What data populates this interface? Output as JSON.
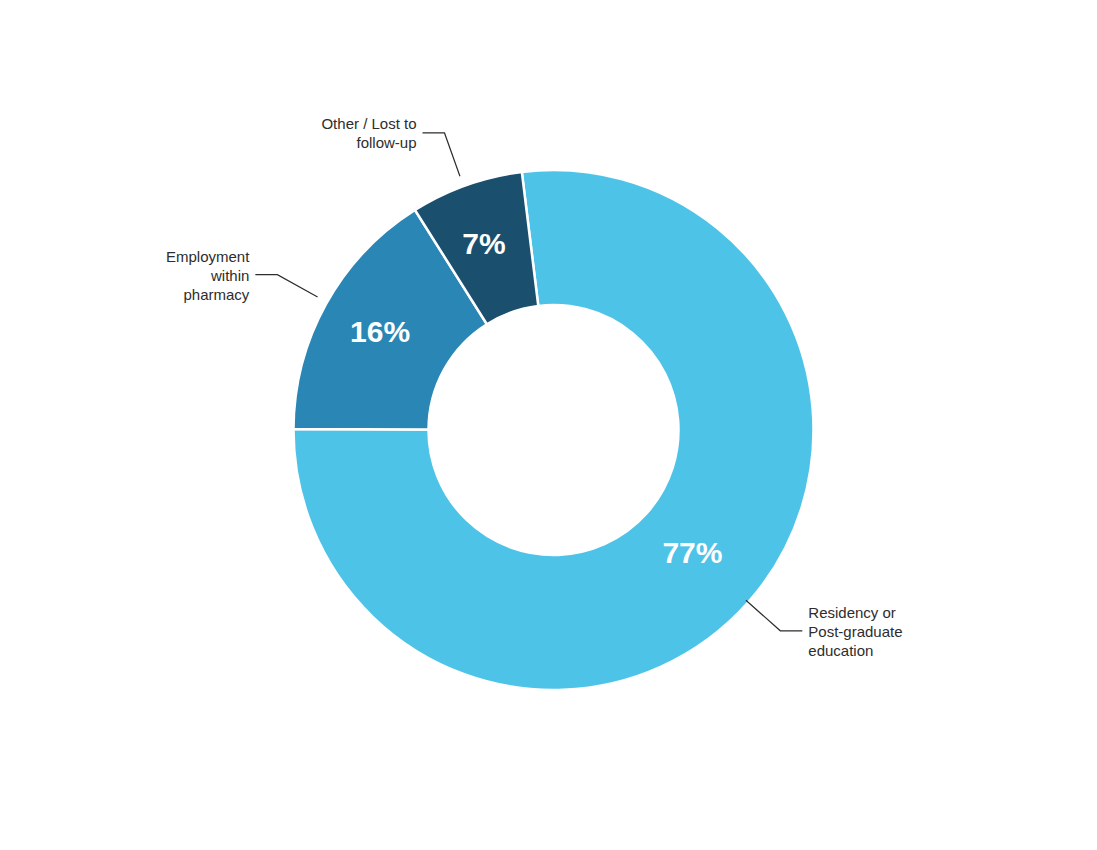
{
  "chart_data": {
    "type": "pie",
    "categories": [
      "Residency or\nPost-graduate\neducation",
      "Employment\nwithin\npharmacy",
      "Other / Lost to\nfollow-up"
    ],
    "values": [
      77,
      16,
      7
    ],
    "value_labels": [
      "77%",
      "16%",
      "7%"
    ],
    "colors": [
      "#4ec3e8",
      "#2a87b5",
      "#1a4f6e"
    ],
    "data_labels": true
  }
}
